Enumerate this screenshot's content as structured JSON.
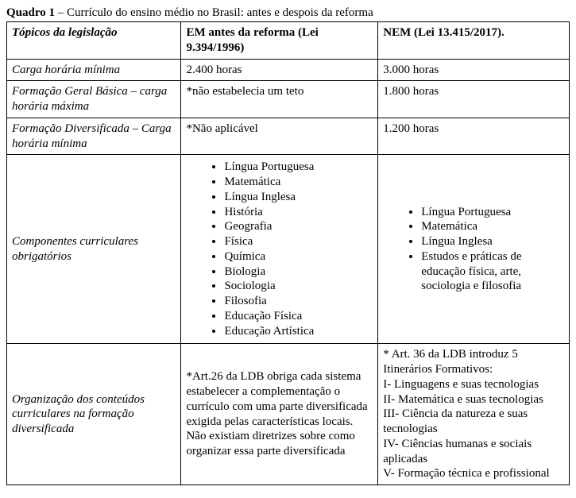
{
  "caption": {
    "lead": "Quadro 1",
    "rest": " – Currículo do ensino médio no Brasil: antes e despois da reforma"
  },
  "headers": {
    "col1": "Tópicos da legislação",
    "col2": "EM antes da reforma (Lei 9.394/1996)",
    "col3": "NEM (Lei 13.415/2017)."
  },
  "rows": {
    "r1": {
      "topic": "Carga horária mínima",
      "before": "2.400 horas",
      "after": "3.000 horas"
    },
    "r2": {
      "topic": "Formação Geral Básica – carga horária máxima",
      "before": "*não estabelecia um teto",
      "after": "1.800 horas"
    },
    "r3": {
      "topic": "Formação Diversificada – Carga horária mínima",
      "before": "*Não aplicável",
      "after": "1.200 horas"
    },
    "r4": {
      "topic": "Componentes curriculares obrigatórios",
      "before_list": {
        "i0": "Língua Portuguesa",
        "i1": "Matemática",
        "i2": "Língua Inglesa",
        "i3": "História",
        "i4": "Geografia",
        "i5": "Física",
        "i6": "Química",
        "i7": "Biologia",
        "i8": "Sociologia",
        "i9": "Filosofia",
        "i10": "Educação Física",
        "i11": "Educação Artística"
      },
      "after_list": {
        "i0": "Língua Portuguesa",
        "i1": "Matemática",
        "i2": "Língua Inglesa",
        "i3": "Estudos e práticas de educação física, arte, sociologia e filosofia"
      }
    },
    "r5": {
      "topic": "Organização dos conteúdos curriculares na formação diversificada",
      "before": "*Art.26 da LDB obriga cada sistema estabelecer a complementação o currículo com uma parte diversificada exigida pelas características locais. Não existiam diretrizes sobre como organizar essa parte diversificada",
      "after_lines": {
        "l0": "* Art. 36 da LDB introduz 5 Itinerários Formativos:",
        "l1": "I- Linguagens e suas tecnologias",
        "l2": "II- Matemática e suas tecnologias",
        "l3": "III- Ciência da natureza e suas tecnologias",
        "l4": "IV- Ciências humanas e sociais aplicadas",
        "l5": "V- Formação técnica e profissional"
      }
    }
  }
}
